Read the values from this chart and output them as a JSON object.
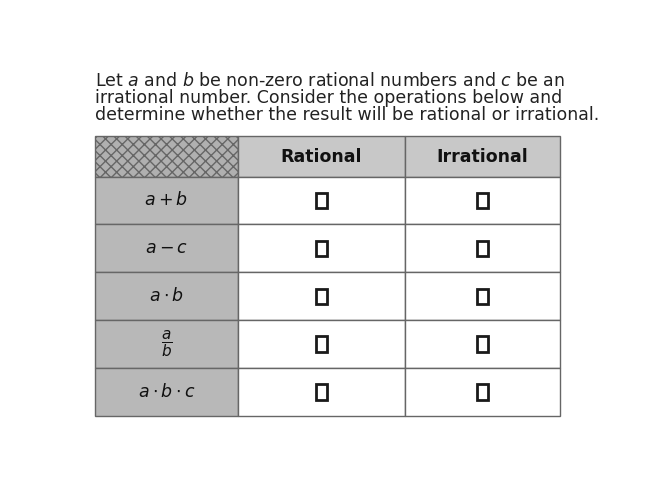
{
  "col_headers": [
    "Rational",
    "Irrational"
  ],
  "row_labels": [
    "$a + b$",
    "$a - c$",
    "$a \\cdot b$",
    "$\\dfrac{a}{b}$",
    "$a \\cdot b \\cdot c$"
  ],
  "header_bg": "#c8c8c8",
  "row_bg_label": "#b8b8b8",
  "row_bg_white": "#ffffff",
  "hatch_pattern": "xxx",
  "hatch_cell_bg": "#b0b0b0",
  "table_border": "#666666",
  "checkbox_color": "#1a1a1a",
  "title_fontsize": 12.5,
  "header_fontsize": 12.5,
  "row_label_fontsize": 12.5,
  "title_lines": [
    "Let $a$ and $b$ be non-zero rational numbers and $c$ be an",
    "irrational number. Consider the operations below and",
    "determine whether the result will be rational or irrational."
  ]
}
